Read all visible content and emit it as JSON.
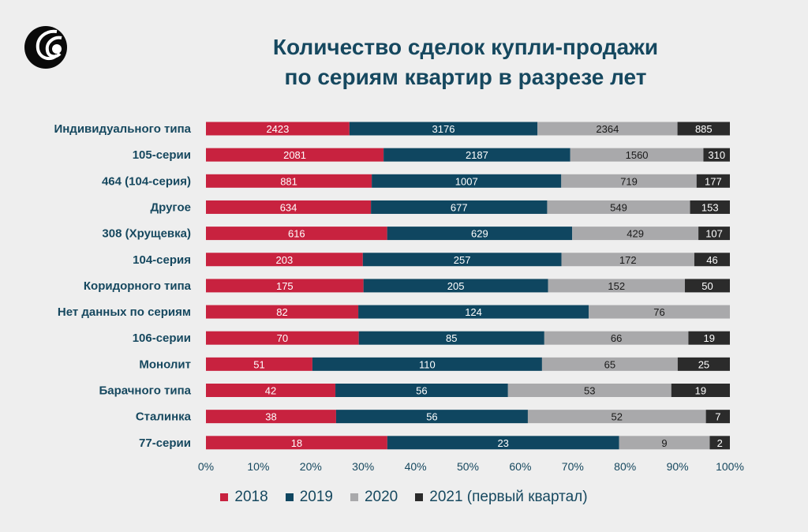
{
  "header": {
    "title_line1": "Количество сделок купли-продажи",
    "title_line2": "по сериям квартир в разрезе лет"
  },
  "colors": {
    "s2018": "#c8223f",
    "s2019": "#0f4660",
    "s2020": "#a9a9ab",
    "s2021": "#2b2b2b",
    "label_text": "#16485f"
  },
  "chart_data": {
    "type": "bar",
    "orientation": "horizontal",
    "stacking": "percent",
    "categories": [
      "Индивидуального типа",
      "105-серии",
      "464 (104-серия)",
      "Другое",
      "308 (Хрущевка)",
      "104-серия",
      "Коридорного типа",
      "Нет данных по сериям",
      "106-серии",
      "Монолит",
      "Барачного типа",
      "Сталинка",
      "77-серии"
    ],
    "series": [
      {
        "name": "2018",
        "values": [
          2423,
          2081,
          881,
          634,
          616,
          203,
          175,
          82,
          70,
          51,
          42,
          38,
          18
        ]
      },
      {
        "name": "2019",
        "values": [
          3176,
          2187,
          1007,
          677,
          629,
          257,
          205,
          124,
          85,
          110,
          56,
          56,
          23
        ]
      },
      {
        "name": "2020",
        "values": [
          2364,
          1560,
          719,
          549,
          429,
          172,
          152,
          76,
          66,
          65,
          53,
          52,
          9
        ]
      },
      {
        "name": "2021 (первый квартал)",
        "values": [
          885,
          310,
          177,
          153,
          107,
          46,
          50,
          null,
          19,
          25,
          19,
          7,
          2
        ]
      }
    ],
    "x_tick_labels": [
      "0%",
      "10%",
      "20%",
      "30%",
      "40%",
      "50%",
      "60%",
      "70%",
      "80%",
      "90%",
      "100%"
    ],
    "xlim": [
      0,
      100
    ],
    "grid": false,
    "legend_position": "bottom"
  }
}
